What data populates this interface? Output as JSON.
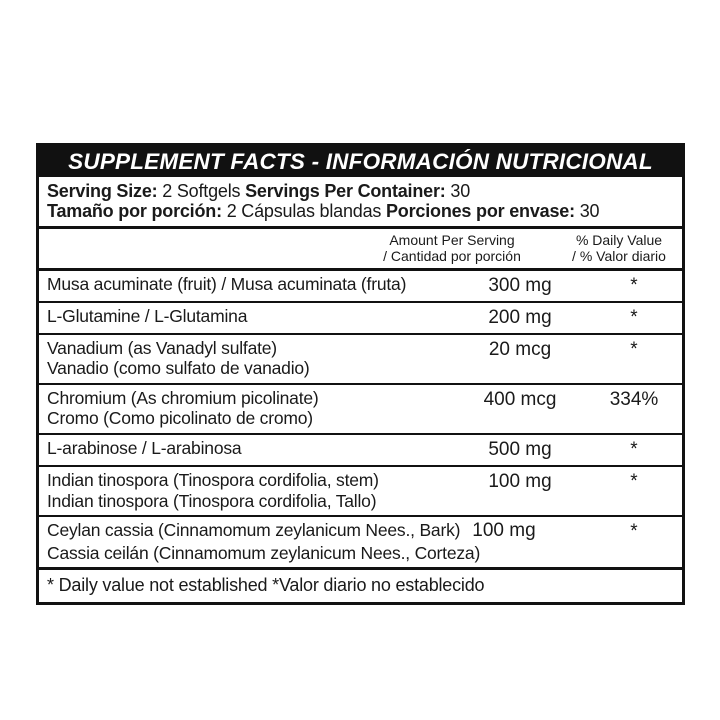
{
  "label": {
    "title": "SUPPLEMENT FACTS - INFORMACIÓN NUTRICIONAL",
    "serving": {
      "en": {
        "size_label": "Serving Size:",
        "size_value": "2 Softgels",
        "container_label": "Servings Per Container:",
        "container_value": "30"
      },
      "es": {
        "size_label": "Tamaño por porción:",
        "size_value": "2 Cápsulas blandas",
        "container_label": "Porciones por envase:",
        "container_value": "30"
      }
    },
    "columns": {
      "amount_en": "Amount Per Serving",
      "amount_es": "/ Cantidad por porción",
      "dv_en": "% Daily Value",
      "dv_es": "/ % Valor diario"
    },
    "rows": [
      {
        "name1": "Musa acuminate (fruit) / Musa acuminata (fruta)",
        "name2": "",
        "amount": "300 mg",
        "dv": "*"
      },
      {
        "name1": "L-Glutamine / L-Glutamina",
        "name2": "",
        "amount": "200 mg",
        "dv": "*"
      },
      {
        "name1": "Vanadium (as Vanadyl sulfate)",
        "name2": "Vanadio (como sulfato de vanadio)",
        "amount": "20 mcg",
        "dv": "*"
      },
      {
        "name1": "Chromium (As chromium picolinate)",
        "name2": "Cromo (Como picolinato de cromo)",
        "amount": "400 mcg",
        "dv": "334%"
      },
      {
        "name1": "L-arabinose / L-arabinosa",
        "name2": "",
        "amount": "500 mg",
        "dv": "*"
      },
      {
        "name1": "Indian tinospora (Tinospora cordifolia, stem)",
        "name2": "Indian tinospora (Tinospora cordifolia, Tallo)",
        "amount": "100 mg",
        "dv": "*"
      },
      {
        "name1": "Ceylan cassia (Cinnamomum zeylanicum Nees., Bark)",
        "name2": "Cassia ceilán (Cinnamomum zeylanicum Nees., Corteza)",
        "amount": "100 mg",
        "dv": "*"
      }
    ],
    "footnote": "* Daily value not established *Valor diario no establecido",
    "colors": {
      "text": "#1a1a1a",
      "band_bg": "#111111",
      "page_bg": "#ffffff"
    }
  }
}
